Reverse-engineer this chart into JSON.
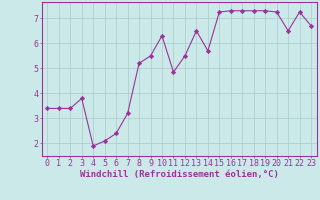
{
  "x": [
    0,
    1,
    2,
    3,
    4,
    5,
    6,
    7,
    8,
    9,
    10,
    11,
    12,
    13,
    14,
    15,
    16,
    17,
    18,
    19,
    20,
    21,
    22,
    23
  ],
  "y": [
    3.4,
    3.4,
    3.4,
    3.8,
    1.9,
    2.1,
    2.4,
    3.2,
    5.2,
    5.5,
    6.3,
    4.85,
    5.5,
    6.5,
    5.7,
    7.25,
    7.3,
    7.3,
    7.3,
    7.3,
    7.25,
    6.5,
    7.25,
    6.7
  ],
  "line_color": "#993399",
  "marker": "D",
  "marker_size": 2.2,
  "xlabel": "Windchill (Refroidissement éolien,°C)",
  "xlim": [
    -0.5,
    23.5
  ],
  "ylim": [
    1.5,
    7.65
  ],
  "yticks": [
    2,
    3,
    4,
    5,
    6,
    7
  ],
  "xticks": [
    0,
    1,
    2,
    3,
    4,
    5,
    6,
    7,
    8,
    9,
    10,
    11,
    12,
    13,
    14,
    15,
    16,
    17,
    18,
    19,
    20,
    21,
    22,
    23
  ],
  "bg_color": "#cce9e9",
  "grid_color": "#aacccc",
  "axis_color": "#993399",
  "label_color": "#993399",
  "tick_color": "#993399",
  "xlabel_fontsize": 6.5,
  "tick_fontsize": 6.0
}
